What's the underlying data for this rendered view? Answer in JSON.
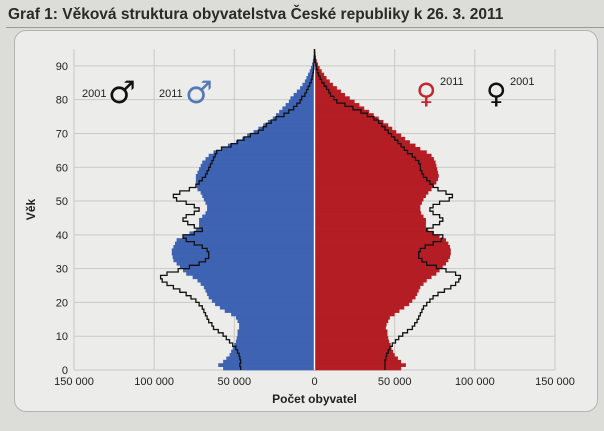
{
  "header": {
    "title": "Graf 1: Věková struktura obyvatelstva České republiky k 26. 3. 2011"
  },
  "colors": {
    "male_2011": "#3d63b2",
    "female_2011": "#b51d24",
    "line_2001": "#111111",
    "grid": "#c9c9c6"
  },
  "chart_data": {
    "type": "population-pyramid",
    "title": "Graf 1: Věková struktura obyvatelstva České republiky k 26. 3. 2011",
    "xlabel": "Počet obyvatel",
    "ylabel": "Věk",
    "xlim": [
      -150000,
      150000
    ],
    "ylim": [
      0,
      95
    ],
    "x_ticks": [
      -150000,
      -100000,
      -50000,
      0,
      50000,
      100000,
      150000
    ],
    "x_tick_labels": [
      "150 000",
      "100 000",
      "50 000",
      "0",
      "50 000",
      "100 000",
      "150 000"
    ],
    "y_ticks": [
      0,
      10,
      20,
      30,
      40,
      50,
      60,
      70,
      80,
      90
    ],
    "y_tick_labels": [
      "0",
      "10",
      "20",
      "30",
      "40",
      "50",
      "60",
      "70",
      "80",
      "90"
    ],
    "grid": true,
    "ages": [
      0,
      1,
      2,
      3,
      4,
      5,
      6,
      7,
      8,
      9,
      10,
      11,
      12,
      13,
      14,
      15,
      16,
      17,
      18,
      19,
      20,
      21,
      22,
      23,
      24,
      25,
      26,
      27,
      28,
      29,
      30,
      31,
      32,
      33,
      34,
      35,
      36,
      37,
      38,
      39,
      40,
      41,
      42,
      43,
      44,
      45,
      46,
      47,
      48,
      49,
      50,
      51,
      52,
      53,
      54,
      55,
      56,
      57,
      58,
      59,
      60,
      61,
      62,
      63,
      64,
      65,
      66,
      67,
      68,
      69,
      70,
      71,
      72,
      73,
      74,
      75,
      76,
      77,
      78,
      79,
      80,
      81,
      82,
      83,
      84,
      85,
      86,
      87,
      88,
      89,
      90,
      91,
      92,
      93,
      94
    ],
    "series": [
      {
        "name": "2011",
        "sex": "male",
        "kind": "bars",
        "values": [
          57000,
          60000,
          57000,
          55000,
          53000,
          52000,
          51000,
          50000,
          49000,
          48500,
          48000,
          48000,
          47000,
          47000,
          48000,
          49000,
          52000,
          56000,
          59000,
          62000,
          64000,
          66000,
          67000,
          68000,
          69000,
          71000,
          73000,
          76000,
          80000,
          82000,
          84000,
          86000,
          88000,
          88500,
          89000,
          89000,
          88000,
          87000,
          86000,
          82000,
          78000,
          74000,
          72000,
          72000,
          72000,
          70000,
          68000,
          67000,
          67000,
          68000,
          69000,
          70000,
          71000,
          73000,
          73500,
          74000,
          74000,
          74000,
          73000,
          72000,
          71000,
          70000,
          68000,
          66000,
          63000,
          58000,
          54000,
          49000,
          45000,
          42000,
          38000,
          35000,
          32000,
          29000,
          26000,
          24000,
          22000,
          20000,
          18000,
          16000,
          15000,
          13000,
          11000,
          9000,
          7500,
          6000,
          5000,
          4000,
          3000,
          2200,
          1500,
          1000,
          700,
          400,
          200
        ]
      },
      {
        "name": "2011",
        "sex": "female",
        "kind": "bars",
        "values": [
          54000,
          57000,
          54000,
          52000,
          50000,
          49000,
          48000,
          47500,
          46500,
          46000,
          45500,
          45500,
          44500,
          45000,
          46000,
          47000,
          50000,
          53000,
          56000,
          59000,
          61000,
          63000,
          64000,
          65000,
          66000,
          68000,
          70000,
          73000,
          76000,
          78000,
          80000,
          82000,
          83500,
          84500,
          85000,
          85000,
          84500,
          83500,
          82000,
          78000,
          74500,
          71000,
          69500,
          69500,
          69500,
          68000,
          66500,
          66000,
          66000,
          67000,
          68000,
          69500,
          71000,
          73000,
          74500,
          76000,
          77000,
          77500,
          77000,
          76500,
          76000,
          75500,
          74500,
          73000,
          70000,
          66000,
          63000,
          59500,
          56500,
          54000,
          51000,
          48500,
          46000,
          43000,
          40000,
          37000,
          34000,
          31000,
          28000,
          25000,
          22000,
          19000,
          16500,
          14000,
          11500,
          9500,
          7500,
          6000,
          4500,
          3200,
          2200,
          1400,
          900,
          500,
          250
        ]
      },
      {
        "name": "2001",
        "sex": "male",
        "kind": "line",
        "values": [
          46000,
          46500,
          46000,
          46500,
          47000,
          48000,
          49000,
          51000,
          53000,
          55000,
          57000,
          60000,
          63000,
          64000,
          66000,
          67000,
          68000,
          69000,
          70000,
          72000,
          74000,
          77000,
          80000,
          84000,
          88000,
          92000,
          95000,
          96000,
          92000,
          85000,
          78000,
          72000,
          68000,
          66000,
          66000,
          67000,
          70000,
          75000,
          80000,
          82000,
          75000,
          70000,
          75000,
          79000,
          82000,
          80000,
          75000,
          72000,
          75000,
          80000,
          86000,
          88000,
          84000,
          78000,
          74000,
          72000,
          70000,
          68000,
          67000,
          66000,
          65000,
          64000,
          63000,
          62000,
          61000,
          58000,
          52000,
          48000,
          44000,
          40000,
          35000,
          32000,
          30000,
          27000,
          24000,
          19000,
          16000,
          13000,
          11000,
          9000,
          8000,
          6000,
          5000,
          4000,
          3000,
          2000,
          1500,
          1000,
          700,
          450,
          300,
          200,
          120,
          80,
          40
        ]
      },
      {
        "name": "2001",
        "sex": "female",
        "kind": "line",
        "values": [
          44000,
          44000,
          44000,
          44500,
          45000,
          46000,
          47000,
          48500,
          50500,
          52500,
          55000,
          58000,
          61000,
          62500,
          64000,
          65000,
          66000,
          67000,
          68000,
          70000,
          72000,
          74000,
          77000,
          81000,
          85000,
          88000,
          90000,
          91000,
          88000,
          82000,
          76000,
          70000,
          67000,
          65000,
          65000,
          66000,
          69000,
          74000,
          79000,
          80000,
          74000,
          70000,
          74000,
          78000,
          80000,
          78000,
          74000,
          72000,
          74000,
          78000,
          84000,
          86000,
          82000,
          77000,
          74000,
          72000,
          70000,
          68000,
          67000,
          66000,
          66000,
          65000,
          63000,
          61000,
          58000,
          56000,
          54000,
          52000,
          50000,
          48000,
          46000,
          44000,
          42000,
          40000,
          37000,
          33000,
          29000,
          24000,
          19000,
          14000,
          12000,
          10000,
          9000,
          7500,
          6000,
          4500,
          3500,
          2500,
          1800,
          1200,
          800,
          500,
          300,
          180,
          90
        ]
      }
    ],
    "legend": {
      "male_2001": {
        "year": "2001",
        "symbol": "♂"
      },
      "male_2011": {
        "year": "2011",
        "symbol": "♂"
      },
      "female_2011": {
        "year": "2011",
        "symbol": "♀"
      },
      "female_2001": {
        "year": "2001",
        "symbol": "♀"
      }
    }
  }
}
